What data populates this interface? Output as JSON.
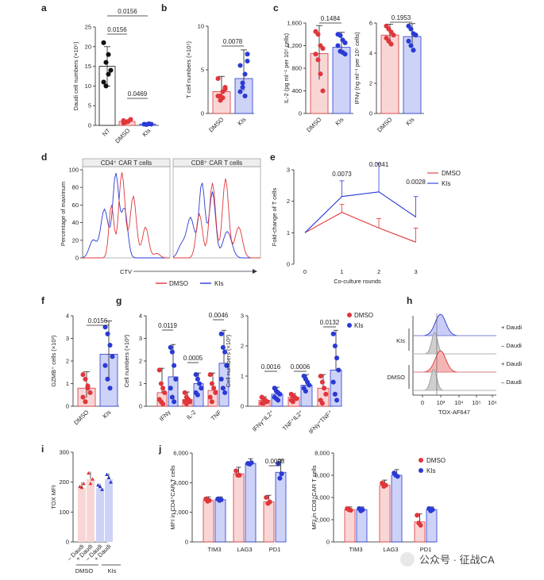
{
  "colors": {
    "dmso": "#e0363b",
    "kis": "#2a3ad4",
    "dmso_fill": "#f9d6d6",
    "kis_fill": "#cdd2f7",
    "nt": "#111111",
    "grey": "#9a9a9a"
  },
  "watermark": "公众号 · 征战CA",
  "panels": {
    "a": "a",
    "b": "b",
    "c": "c",
    "d": "d",
    "e": "e",
    "f": "f",
    "g": "g",
    "h": "h",
    "i": "i",
    "j": "j"
  },
  "chart_data": [
    {
      "id": "a",
      "type": "bar",
      "ylabel": "Daudi cell numbers (×10⁵)",
      "categories": [
        "NT",
        "DMSO",
        "KIs"
      ],
      "values": [
        15,
        1,
        0.3
      ],
      "ylim": [
        0,
        25
      ],
      "yticks": [
        "0",
        "5",
        "10",
        "15",
        "20",
        "25"
      ],
      "points": [
        [
          21,
          16,
          18,
          14,
          11,
          10,
          13
        ],
        [
          1.2,
          0.8,
          1,
          1.5,
          0.6,
          0.9
        ],
        [
          0.3,
          0.2,
          0.4,
          0.3
        ]
      ],
      "pvalues": [
        {
          "text": "0.0156",
          "from": 0,
          "to": 2
        },
        {
          "text": "0.0156",
          "from": 0,
          "to": 1
        },
        {
          "text": "0.0469",
          "from": 1,
          "to": 2
        }
      ]
    },
    {
      "id": "b",
      "type": "bar",
      "ylabel": "T cell numbers (×10⁵)",
      "categories": [
        "DMSO",
        "KIs"
      ],
      "values": [
        2.5,
        4
      ],
      "ylim": [
        0,
        10
      ],
      "yticks": [
        "0",
        "5",
        "10"
      ],
      "points": [
        [
          2,
          1.5,
          2.5,
          3,
          4,
          2,
          1.8,
          2.8
        ],
        [
          5.5,
          3,
          2,
          6.8,
          2.5,
          3.5,
          4.5,
          6
        ]
      ],
      "pvalues": [
        {
          "text": "0.0078",
          "from": 0,
          "to": 1
        }
      ]
    },
    {
      "id": "c1",
      "type": "bar",
      "ylabel": "IL-2 (pg ml⁻¹ per 10⁵ cells)",
      "categories": [
        "DMSO",
        "KIs"
      ],
      "values": [
        1060,
        1170
      ],
      "ylim": [
        0,
        1600
      ],
      "yticks": [
        "0",
        "400",
        "800",
        "1,200",
        "1,600"
      ],
      "points": [
        [
          1450,
          1400,
          1200,
          1150,
          1050,
          950,
          700,
          400
        ],
        [
          1400,
          1380,
          1300,
          1250,
          1200,
          1100,
          1080,
          1050
        ]
      ],
      "pvalues": [
        {
          "text": "0.1484",
          "from": 0,
          "to": 1
        }
      ]
    },
    {
      "id": "c2",
      "type": "bar",
      "ylabel": "IFNγ (ng ml⁻¹ per 10⁵ cells)",
      "categories": [
        "DMSO",
        "KIs"
      ],
      "values": [
        5.2,
        5.1
      ],
      "ylim": [
        0,
        6
      ],
      "yticks": [
        "0",
        "2",
        "4",
        "6"
      ],
      "points": [
        [
          5.8,
          5.6,
          5.4,
          5.2,
          5,
          4.8,
          4.6
        ],
        [
          5.8,
          5.6,
          5.3,
          5.2,
          4.8,
          4.5,
          4.2
        ]
      ],
      "pvalues": [
        {
          "text": "0.1953",
          "from": 0,
          "to": 1
        }
      ]
    },
    {
      "id": "d",
      "type": "histogram",
      "ylabel": "Percentage of maximum",
      "xlabel": "CTV",
      "titles": [
        "CD4⁺ CAR T cells",
        "CD8⁺ CAR T cells"
      ],
      "yticks": [
        "0",
        "20",
        "40",
        "60",
        "80",
        "100"
      ],
      "series": [
        {
          "name": "DMSO"
        },
        {
          "name": "KIs"
        }
      ]
    },
    {
      "id": "e",
      "type": "line",
      "ylabel": "Fold-change of  T cells",
      "xlabel": "Co-culture rounds",
      "x": [
        0,
        1,
        2,
        3
      ],
      "xticks": [
        "0",
        "1",
        "2",
        "3"
      ],
      "ylim": [
        0,
        3
      ],
      "yticks": [
        "0",
        "1",
        "2",
        "3"
      ],
      "series": [
        {
          "name": "DMSO",
          "values": [
            1,
            1.65,
            1.15,
            0.7
          ],
          "err": [
            0,
            0.25,
            0.3,
            0.45
          ]
        },
        {
          "name": "KIs",
          "values": [
            1,
            2.15,
            2.3,
            1.5
          ],
          "err": [
            0,
            0.5,
            0.9,
            0.65
          ]
        }
      ],
      "annotations": [
        "0.0073",
        "0.0041",
        "0.0028"
      ]
    },
    {
      "id": "f",
      "type": "bar",
      "ylabel": "GZMB⁺ cells (×10³)",
      "categories": [
        "DMSO",
        "KIs"
      ],
      "values": [
        0.8,
        2.3
      ],
      "ylim": [
        0,
        4
      ],
      "yticks": [
        "0",
        "1",
        "2",
        "3",
        "4"
      ],
      "points": [
        [
          1.4,
          1.2,
          0.8,
          0.6,
          0.4,
          0.2,
          0.9
        ],
        [
          3.5,
          3.2,
          2.7,
          2.2,
          1.8,
          1.2,
          0.8
        ]
      ],
      "pvalues": [
        {
          "text": "0.0156",
          "from": 0,
          "to": 1
        }
      ]
    },
    {
      "id": "g1",
      "type": "bar",
      "ylabel": "Cell numbers (×10³)",
      "categories": [
        "IFNγ",
        "IL-2",
        "TNF"
      ],
      "ylim": [
        0,
        4
      ],
      "yticks": [
        "0",
        "1",
        "2",
        "3",
        "4"
      ],
      "series": [
        {
          "name": "DMSO",
          "values": [
            0.6,
            0.3,
            0.7
          ],
          "points": [
            [
              1.6,
              1,
              0.8,
              0.6,
              0.3,
              0.2,
              0.1
            ],
            [
              0.6,
              0.4,
              0.3,
              0.2,
              0.2,
              0.1
            ],
            [
              1.4,
              1,
              0.8,
              0.6,
              0.4,
              0.2
            ]
          ]
        },
        {
          "name": "KIs",
          "values": [
            1.3,
            1,
            1.9
          ],
          "points": [
            [
              2.6,
              2.4,
              1.8,
              1.2,
              0.8,
              0.4,
              0.2
            ],
            [
              1.4,
              1.2,
              1,
              0.8,
              0.6,
              0.5
            ],
            [
              3.2,
              2.6,
              2.4,
              1.8,
              1.2,
              0.8,
              0.6
            ]
          ]
        }
      ],
      "pvalues": [
        {
          "text": "0.0119",
          "cat": 0
        },
        {
          "text": "0.0005",
          "cat": 1
        },
        {
          "text": "0.0046",
          "cat": 2
        }
      ]
    },
    {
      "id": "g2",
      "type": "bar",
      "ylabel": "Cell numbers (×10³)",
      "categories": [
        "IFNγ⁺IL2⁺",
        "TNF⁺IL2⁺",
        "IFNγ⁺TNF⁺"
      ],
      "ylim": [
        0,
        3
      ],
      "yticks": [
        "0",
        "1",
        "2",
        "3"
      ],
      "series": [
        {
          "name": "DMSO",
          "values": [
            0.2,
            0.3,
            0.6
          ],
          "points": [
            [
              0.3,
              0.25,
              0.2,
              0.15,
              0.1,
              0.1
            ],
            [
              0.4,
              0.35,
              0.3,
              0.25,
              0.2,
              0.15
            ],
            [
              1,
              0.8,
              0.6,
              0.4,
              0.2,
              0.1
            ]
          ]
        },
        {
          "name": "KIs",
          "values": [
            0.4,
            0.7,
            1.2
          ],
          "points": [
            [
              0.6,
              0.5,
              0.45,
              0.4,
              0.3,
              0.25,
              0.2
            ],
            [
              1,
              0.9,
              0.8,
              0.7,
              0.6,
              0.5
            ],
            [
              2.4,
              2,
              1.6,
              1.2,
              0.8,
              0.4,
              0.2
            ]
          ]
        }
      ],
      "pvalues": [
        {
          "text": "0.0016",
          "cat": 0
        },
        {
          "text": "0.0006",
          "cat": 1
        },
        {
          "text": "0.0132",
          "cat": 2
        }
      ],
      "legend": [
        "DMSO",
        "KIs"
      ]
    },
    {
      "id": "h",
      "type": "histogram",
      "xlabel": "TOX-AF647",
      "groups": [
        "KIs",
        "DMSO"
      ],
      "rows": [
        "+ Daudi",
        "– Daudi",
        "+ Daudi",
        "– Daudi"
      ],
      "xticks": [
        "0",
        "10³",
        "10⁴",
        "10⁵",
        "10⁶"
      ]
    },
    {
      "id": "i",
      "type": "bar",
      "ylabel": "TOX MFI",
      "categories": [
        "– Daudi",
        "+ Daudi",
        "– Daudi",
        "+ Daudi"
      ],
      "groups": [
        "DMSO",
        "KIs"
      ],
      "values": [
        180,
        210,
        180,
        210
      ],
      "ylim": [
        0,
        300
      ],
      "yticks": [
        "0",
        "100",
        "200",
        "300"
      ],
      "points": [
        [
          185,
          182,
          195
        ],
        [
          230,
          195,
          210
        ],
        [
          190,
          185,
          175
        ],
        [
          225,
          215,
          200
        ]
      ]
    },
    {
      "id": "j1",
      "type": "bar",
      "ylabel": "MFI in CD4⁺CAR T cells",
      "categories": [
        "TIM3",
        "LAG3",
        "PD1"
      ],
      "ylim": [
        0,
        6000
      ],
      "yticks": [
        "0",
        "2,000",
        "4,000",
        "6,000"
      ],
      "series": [
        {
          "name": "DMSO",
          "values": [
            2800,
            4600,
            2700
          ],
          "points": [
            [
              2900,
              2750,
              2800
            ],
            [
              4800,
              4500,
              4500
            ],
            [
              3000,
              2600,
              2700
            ]
          ]
        },
        {
          "name": "KIs",
          "values": [
            2850,
            5300,
            4700
          ],
          "points": [
            [
              2900,
              2800,
              2850
            ],
            [
              5300,
              5250,
              5350
            ],
            [
              5300,
              4300,
              4600
            ]
          ]
        }
      ],
      "pvalues": [
        {
          "text": "0.0098",
          "cat": 2
        }
      ]
    },
    {
      "id": "j2",
      "type": "bar",
      "ylabel": "MFI in CD8⁺CAR T cells",
      "categories": [
        "TIM3",
        "LAG3",
        "PD1"
      ],
      "ylim": [
        0,
        8000
      ],
      "yticks": [
        "0",
        "2,000",
        "4,000",
        "6,000",
        "8,000"
      ],
      "series": [
        {
          "name": "DMSO",
          "values": [
            2900,
            5100,
            1800
          ],
          "points": [
            [
              3000,
              2900,
              2850
            ],
            [
              5300,
              5000,
              5100
            ],
            [
              2400,
              1700,
              1500
            ]
          ]
        },
        {
          "name": "KIs",
          "values": [
            2900,
            6000,
            2900
          ],
          "points": [
            [
              3000,
              2800,
              2900
            ],
            [
              6200,
              6000,
              5900
            ],
            [
              3000,
              2800,
              2900
            ]
          ]
        }
      ],
      "legend": [
        "DMSO",
        "KIs"
      ]
    }
  ]
}
